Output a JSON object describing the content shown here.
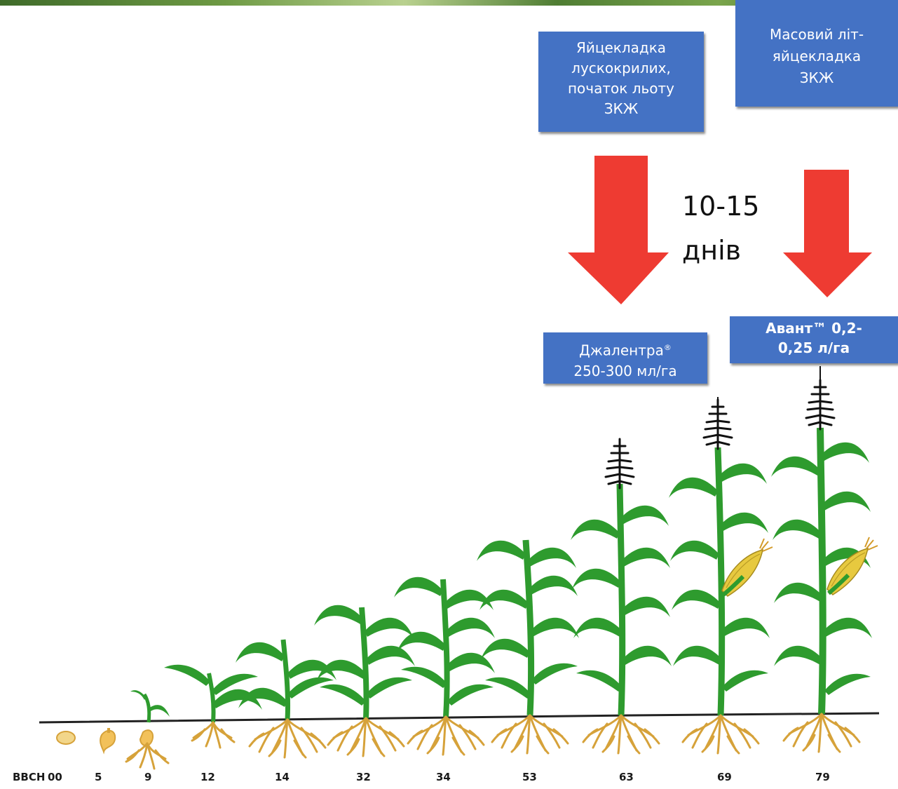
{
  "boxes": {
    "egg_laying": [
      "Яйцекладка",
      "лускокрилих,",
      "початок льоту",
      "ЗКЖ"
    ],
    "mass_flight": [
      "Масовий літ-",
      "яйцекладка",
      "ЗКЖ"
    ],
    "jalentra": {
      "name": "Джалентра",
      "mark": "®",
      "dose": "250-300 мл/га"
    },
    "avant": [
      "Авант™ 0,2-",
      "0,25 л/га"
    ]
  },
  "interval": {
    "line1": "10-15",
    "line2": "днів"
  },
  "bbch": {
    "label": "BBCH",
    "stages": [
      "00",
      "5",
      "9",
      "12",
      "14",
      "32",
      "34",
      "53",
      "63",
      "69",
      "79"
    ]
  },
  "colors": {
    "box_fill": "#4472c4",
    "arrow": "#ee3b32",
    "leaf": "#2e9b2e",
    "root": "#d6a23a",
    "tassel": "#111111",
    "cob": "#e7c93f"
  },
  "icons": [
    "corn-plant-icon",
    "root-icon",
    "tassel-icon",
    "corn-cob-icon",
    "seed-icon",
    "down-arrow-icon"
  ]
}
